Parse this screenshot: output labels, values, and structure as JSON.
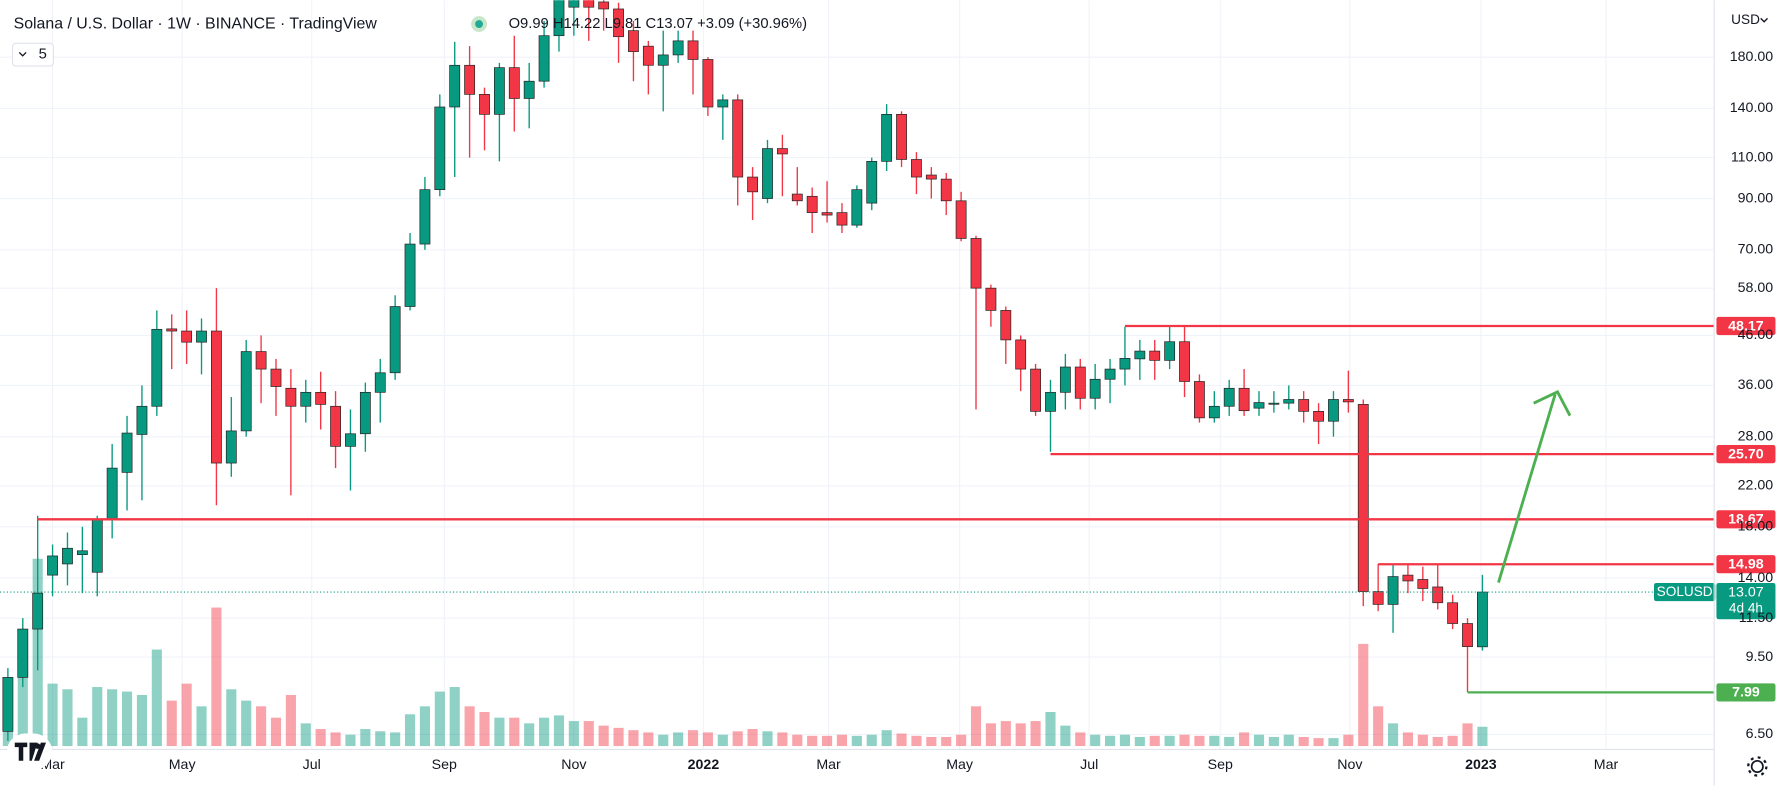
{
  "chart_data": {
    "type": "candlestick",
    "title": "Solana / U.S. Dollar · 1W · BINANCE · TradingView",
    "ohlc_text": "O9.99 H14.22 L9.81 C13.07 +3.09 (+30.96%)",
    "indicator_length": "5",
    "currency": "USD",
    "symbol": "SOLUSD",
    "countdown": "4d 4h",
    "log_scale": true,
    "grid": true,
    "up_color": "#089981",
    "down_color": "#f23645",
    "open": [
      6.6,
      8.6,
      10.9,
      14.2,
      15.0,
      15.7,
      14.4,
      18.6,
      23.5,
      28.3,
      32.5,
      47.5,
      47,
      44.5,
      47,
      24.6,
      28.8,
      42.5,
      39,
      35.5,
      32.5,
      34.8,
      32.5,
      26.7,
      28.4,
      34.8,
      38.3,
      53,
      72,
      94,
      141,
      173,
      150,
      136,
      171,
      147,
      160,
      200,
      230,
      240,
      236,
      228,
      205,
      190,
      173,
      182,
      195,
      178,
      141,
      146,
      100,
      90,
      115,
      92,
      91,
      84,
      84,
      79,
      88,
      108,
      136,
      109,
      101,
      99,
      89,
      74,
      58,
      52,
      45,
      39,
      31.7,
      34.8,
      39.4,
      33.8,
      37.1,
      39,
      41,
      42.6,
      40.7,
      44.6,
      36.7,
      30.7,
      32.5,
      35.5,
      32.2,
      33,
      33,
      33.6,
      31.7,
      30.2,
      33.6,
      32.8,
      13.1,
      12.3,
      14.2,
      13.9,
      13.4,
      12.4,
      11.2,
      9.99
    ],
    "high": [
      9,
      11.5,
      19,
      16.5,
      17.5,
      18,
      19,
      27,
      31,
      36,
      52,
      51,
      52,
      50,
      58,
      34,
      45,
      46,
      41,
      39,
      37,
      38.5,
      35,
      32,
      36.5,
      41,
      56,
      76,
      100,
      150,
      194,
      190,
      155,
      175,
      200,
      175,
      215,
      245,
      260,
      255,
      250,
      235,
      215,
      195,
      205,
      205,
      205,
      180,
      150,
      150,
      105,
      120,
      123,
      105,
      95,
      98,
      88,
      96,
      110,
      143,
      138,
      113,
      105,
      102,
      93,
      75,
      59,
      53,
      46,
      40,
      37,
      42,
      41,
      40,
      41,
      48,
      45,
      45,
      48,
      48,
      38,
      35,
      37,
      39,
      35,
      35,
      36,
      35,
      33,
      35,
      38.7,
      33.6,
      15,
      15,
      15,
      14.8,
      15,
      12.9,
      11.5,
      14.22
    ],
    "low": [
      6.3,
      8.2,
      8.9,
      12.8,
      13.5,
      13,
      12.8,
      17,
      19.5,
      20.5,
      31,
      39,
      40,
      38,
      20,
      23,
      28,
      33,
      31,
      21,
      30,
      29,
      24,
      21.5,
      26,
      30,
      37,
      52,
      70,
      91,
      100,
      110,
      114,
      108,
      125,
      127,
      155,
      185,
      200,
      195,
      205,
      175,
      160,
      150,
      138,
      175,
      150,
      135,
      120,
      87,
      81,
      88,
      91,
      87,
      76,
      80,
      76,
      78,
      85,
      103,
      105,
      92,
      90,
      83,
      73,
      32,
      48,
      40,
      35,
      31,
      26,
      32,
      32,
      32,
      33,
      36,
      37,
      37,
      39,
      34,
      30,
      30,
      31,
      31,
      31,
      31.5,
      32,
      30,
      27,
      28,
      31.5,
      12.2,
      11.9,
      10.7,
      13,
      12.5,
      12,
      10.9,
      8.0,
      9.81
    ],
    "close": [
      8.6,
      10.9,
      13.0,
      15.6,
      16.2,
      16.0,
      18.6,
      24,
      28.5,
      32.5,
      47.4,
      47.0,
      44.5,
      47,
      24.6,
      28.8,
      42.5,
      39,
      35.8,
      32.5,
      34.8,
      32.8,
      26.7,
      28.4,
      34.8,
      38.3,
      53,
      72,
      94,
      141,
      173,
      150,
      136,
      171,
      147,
      160,
      200,
      240,
      240,
      230,
      228,
      199,
      185,
      173,
      182,
      195,
      178,
      141,
      146,
      100,
      93,
      115,
      112,
      89,
      84,
      83,
      79,
      94,
      108,
      136,
      109,
      100,
      99,
      89,
      74,
      58,
      52,
      45,
      39,
      31.7,
      34.8,
      39.4,
      33.8,
      37.1,
      39,
      41.1,
      42.6,
      40.7,
      44.6,
      36.7,
      30.7,
      32.5,
      35.5,
      31.8,
      33.1,
      33,
      33.6,
      31.7,
      30.2,
      33.6,
      33.2,
      13.1,
      12.3,
      14.1,
      13.8,
      13.3,
      12.4,
      11.2,
      10.0,
      13.07
    ],
    "volume": [
      40,
      95,
      165,
      55,
      50,
      25,
      52,
      50,
      48,
      45,
      85,
      40,
      55,
      35,
      122,
      50,
      40,
      35,
      25,
      45,
      20,
      15,
      12,
      10,
      15,
      13,
      12,
      28,
      35,
      48,
      52,
      35,
      30,
      25,
      25,
      20,
      25,
      27,
      22,
      22,
      18,
      16,
      14,
      12,
      10,
      12,
      14,
      12,
      10,
      13,
      15,
      13,
      12,
      10,
      9,
      9,
      10,
      9,
      10,
      14,
      11,
      9,
      8,
      8,
      10,
      35,
      20,
      22,
      20,
      22,
      30,
      18,
      12,
      10,
      9,
      10,
      8,
      9,
      9,
      10,
      9,
      9,
      8,
      12,
      10,
      8,
      10,
      8,
      7,
      7,
      10,
      90,
      35,
      20,
      12,
      10,
      8,
      9,
      20,
      17
    ],
    "xlim": [
      -0.53,
      114.56
    ],
    "xticks": [
      {
        "value": 3,
        "label": "Mar"
      },
      {
        "value": 11.7,
        "label": "May"
      },
      {
        "value": 20.4,
        "label": "Jul"
      },
      {
        "value": 29.3,
        "label": "Sep"
      },
      {
        "value": 38,
        "label": "Nov"
      },
      {
        "value": 46.7,
        "label": "2022"
      },
      {
        "value": 55.1,
        "label": "Mar"
      },
      {
        "value": 63.9,
        "label": "May"
      },
      {
        "value": 72.6,
        "label": "Jul"
      },
      {
        "value": 81.4,
        "label": "Sep"
      },
      {
        "value": 90.1,
        "label": "Nov"
      },
      {
        "value": 98.9,
        "label": "2023"
      },
      {
        "value": 107.3,
        "label": "Mar"
      }
    ],
    "ylim": [
      6.04,
      238
    ],
    "yticks": [
      {
        "value": 180,
        "label": "180.00"
      },
      {
        "value": 140,
        "label": "140.00"
      },
      {
        "value": 110,
        "label": "110.00"
      },
      {
        "value": 90,
        "label": "90.00"
      },
      {
        "value": 70,
        "label": "70.00"
      },
      {
        "value": 58,
        "label": "58.00"
      },
      {
        "value": 46,
        "label": "46.00"
      },
      {
        "value": 36,
        "label": "36.00"
      },
      {
        "value": 28,
        "label": "28.00"
      },
      {
        "value": 22,
        "label": "22.00"
      },
      {
        "value": 18,
        "label": "18.00"
      },
      {
        "value": 14,
        "label": "14.00"
      },
      {
        "value": 11.5,
        "label": "11.50"
      },
      {
        "value": 9.5,
        "label": "9.50"
      },
      {
        "value": 6.5,
        "label": "6.50"
      }
    ],
    "levels": [
      {
        "value": 48.17,
        "label": "48.17",
        "color": "#f23645",
        "from": 75
      },
      {
        "value": 25.7,
        "label": "25.70",
        "color": "#f23645",
        "from": 70
      },
      {
        "value": 18.67,
        "label": "18.67",
        "color": "#f23645",
        "from": 2
      },
      {
        "value": 14.98,
        "label": "14.98",
        "color": "#f23645",
        "from": 92
      },
      {
        "value": 7.99,
        "label": "7.99",
        "color": "#4caf50",
        "from": 98
      }
    ]
  }
}
